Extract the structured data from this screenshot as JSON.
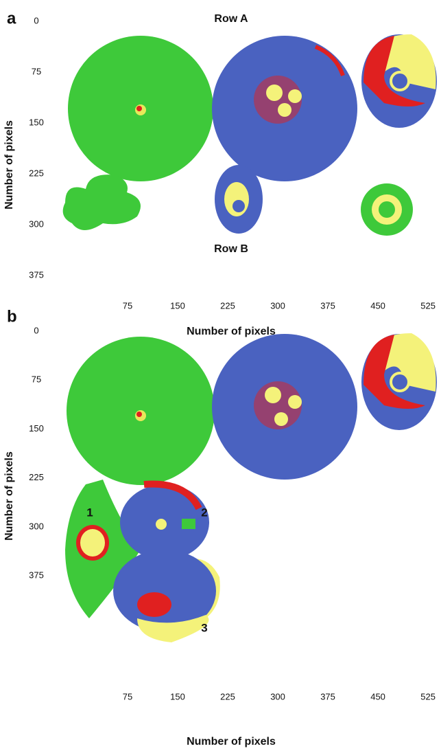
{
  "panels": [
    {
      "label": "a",
      "annotations": [
        "Row A",
        "Row B"
      ],
      "y_axis": {
        "label": "Number of pixels",
        "ticks": [
          0,
          75,
          150,
          225,
          300,
          375
        ]
      },
      "x_axis": {
        "label": "Number of pixels",
        "ticks": [
          75,
          150,
          225,
          300,
          375,
          450,
          525
        ]
      }
    },
    {
      "label": "b",
      "annotations": [
        "1",
        "2",
        "3"
      ],
      "y_axis": {
        "label": "Number of pixels",
        "ticks": [
          0,
          75,
          150,
          225,
          300,
          375
        ]
      },
      "x_axis": {
        "label": "Number of pixels",
        "ticks": [
          75,
          150,
          225,
          300,
          375,
          450,
          525
        ]
      }
    }
  ]
}
